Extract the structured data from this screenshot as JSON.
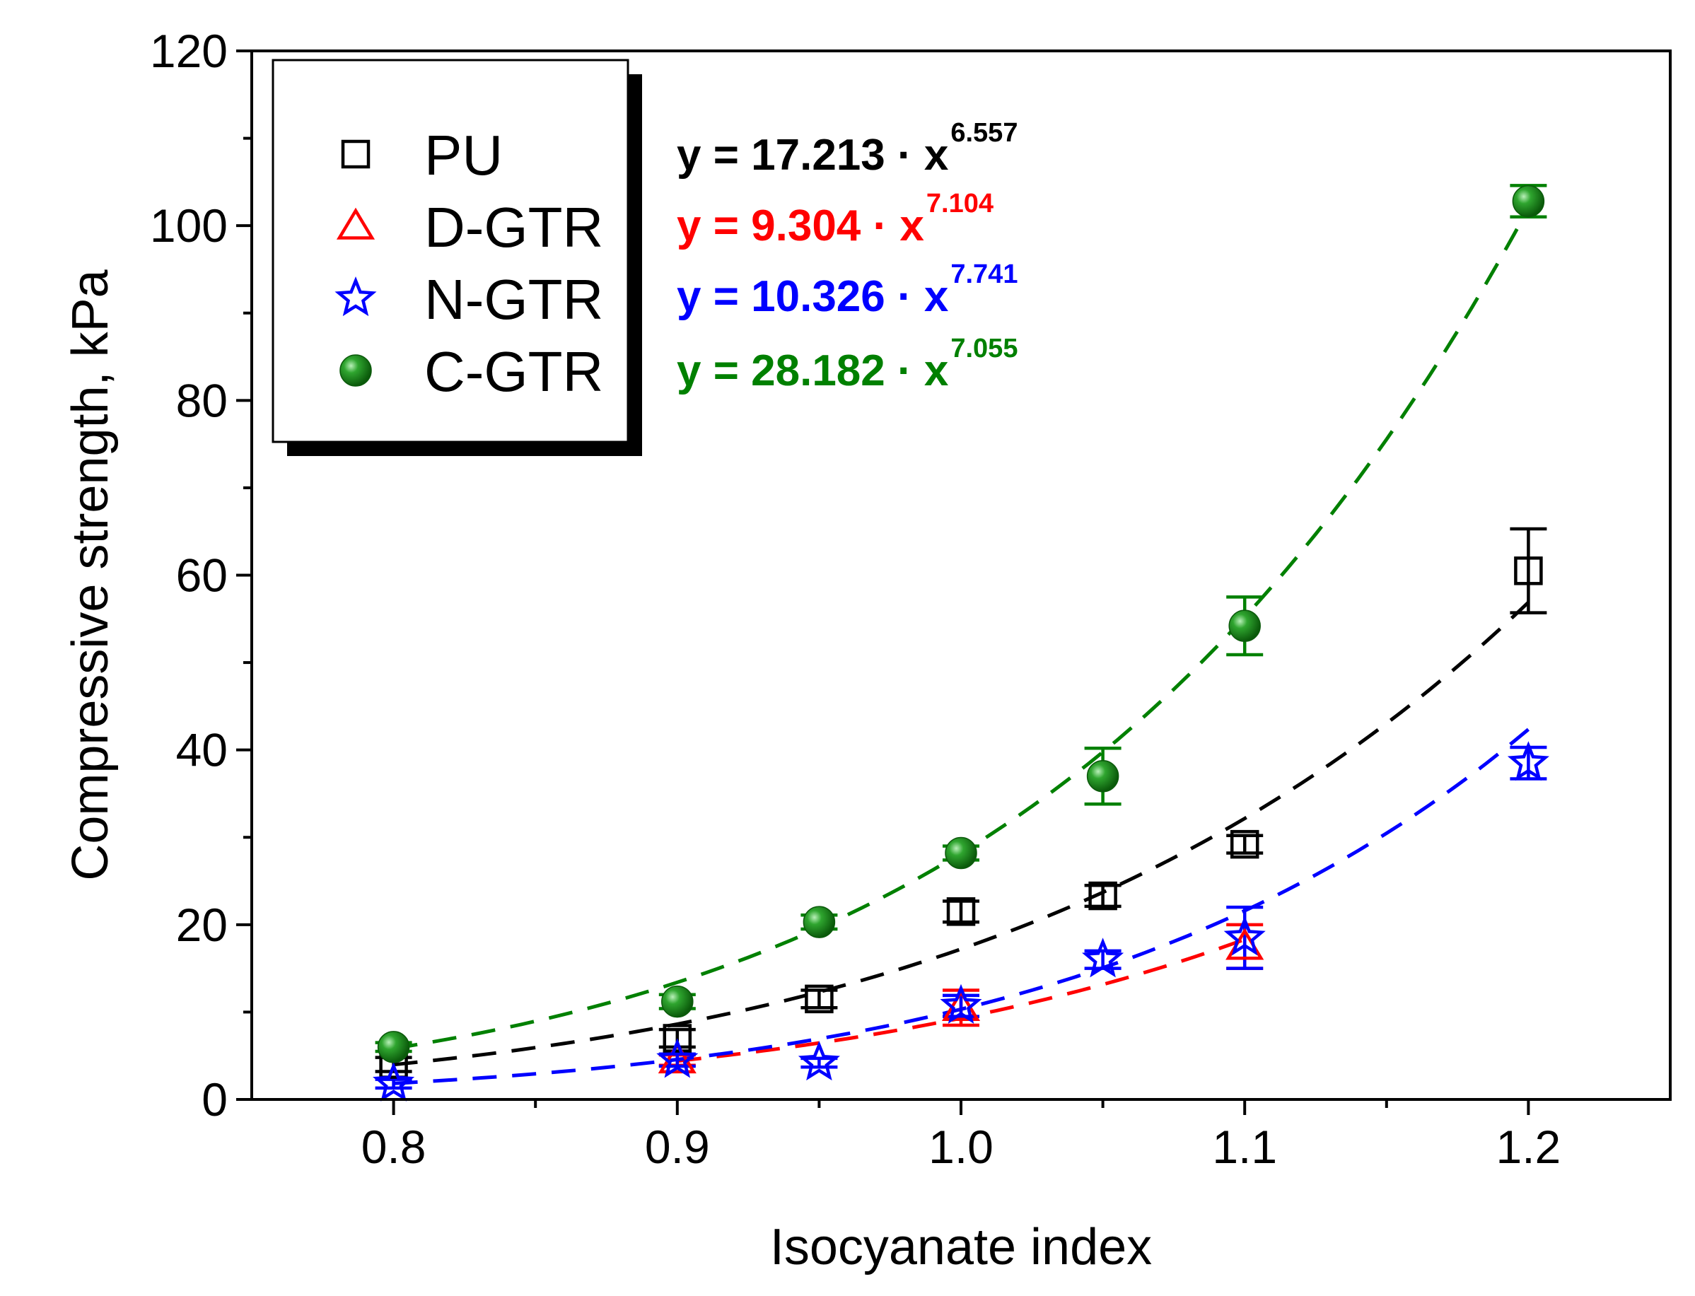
{
  "chart_data": {
    "type": "scatter",
    "xlabel": "Isocyanate index",
    "ylabel": "Compressive strength, kPa",
    "xlim": [
      0.75,
      1.25
    ],
    "ylim": [
      0,
      120
    ],
    "xticks": [
      "0.8",
      "0.9",
      "1.0",
      "1.1",
      "1.2"
    ],
    "yticks": [
      "0",
      "20",
      "40",
      "60",
      "80",
      "100",
      "120"
    ],
    "legend_position": "top-left",
    "grid": false,
    "series": [
      {
        "name": "PU",
        "color": "#000000",
        "marker": "open-square",
        "points": [
          {
            "x": 0.8,
            "y": 4.0,
            "err": 0.8
          },
          {
            "x": 0.9,
            "y": 7.0,
            "err": 1.0
          },
          {
            "x": 0.95,
            "y": 11.5,
            "err": 1.0
          },
          {
            "x": 1.0,
            "y": 21.5,
            "err": 1.2
          },
          {
            "x": 1.05,
            "y": 23.3,
            "err": 1.2
          },
          {
            "x": 1.1,
            "y": 29.2,
            "err": 1.0
          },
          {
            "x": 1.2,
            "y": 60.5,
            "err": 4.8
          }
        ],
        "fit": {
          "a": 17.213,
          "b": 6.557
        },
        "equation": {
          "main": "y = 17.213 · x",
          "exponent": "6.557"
        }
      },
      {
        "name": "D-GTR",
        "color": "#ff0000",
        "marker": "open-triangle",
        "points": [
          {
            "x": 0.9,
            "y": 4.5,
            "err": 0.6
          },
          {
            "x": 1.0,
            "y": 10.5,
            "err": 2.0
          },
          {
            "x": 1.1,
            "y": 17.5,
            "err": 2.5
          }
        ],
        "fit": {
          "a": 9.304,
          "b": 7.104
        },
        "equation": {
          "main": "y = 9.304 · x",
          "exponent": "7.104"
        }
      },
      {
        "name": "N-GTR",
        "color": "#0000ff",
        "marker": "open-star",
        "points": [
          {
            "x": 0.8,
            "y": 1.8,
            "err": 0.5
          },
          {
            "x": 0.9,
            "y": 4.5,
            "err": 0.7
          },
          {
            "x": 0.95,
            "y": 4.2,
            "err": 0.5
          },
          {
            "x": 1.0,
            "y": 10.7,
            "err": 1.2
          },
          {
            "x": 1.05,
            "y": 16.0,
            "err": 1.0
          },
          {
            "x": 1.1,
            "y": 18.5,
            "err": 3.5
          },
          {
            "x": 1.2,
            "y": 38.5,
            "err": 1.8
          }
        ],
        "fit": {
          "a": 10.326,
          "b": 7.741
        },
        "equation": {
          "main": "y = 10.326 · x",
          "exponent": "7.741"
        }
      },
      {
        "name": "C-GTR",
        "color": "#008000",
        "marker": "filled-circle",
        "points": [
          {
            "x": 0.8,
            "y": 6.0,
            "err": 0.5
          },
          {
            "x": 0.9,
            "y": 11.2,
            "err": 0.8
          },
          {
            "x": 0.95,
            "y": 20.3,
            "err": 0.8
          },
          {
            "x": 1.0,
            "y": 28.2,
            "err": 0.8
          },
          {
            "x": 1.05,
            "y": 37.0,
            "err": 3.2
          },
          {
            "x": 1.1,
            "y": 54.2,
            "err": 3.3
          },
          {
            "x": 1.2,
            "y": 102.8,
            "err": 1.8
          }
        ],
        "fit": {
          "a": 28.182,
          "b": 7.055
        },
        "equation": {
          "main": "y = 28.182 · x",
          "exponent": "7.055"
        }
      }
    ]
  }
}
